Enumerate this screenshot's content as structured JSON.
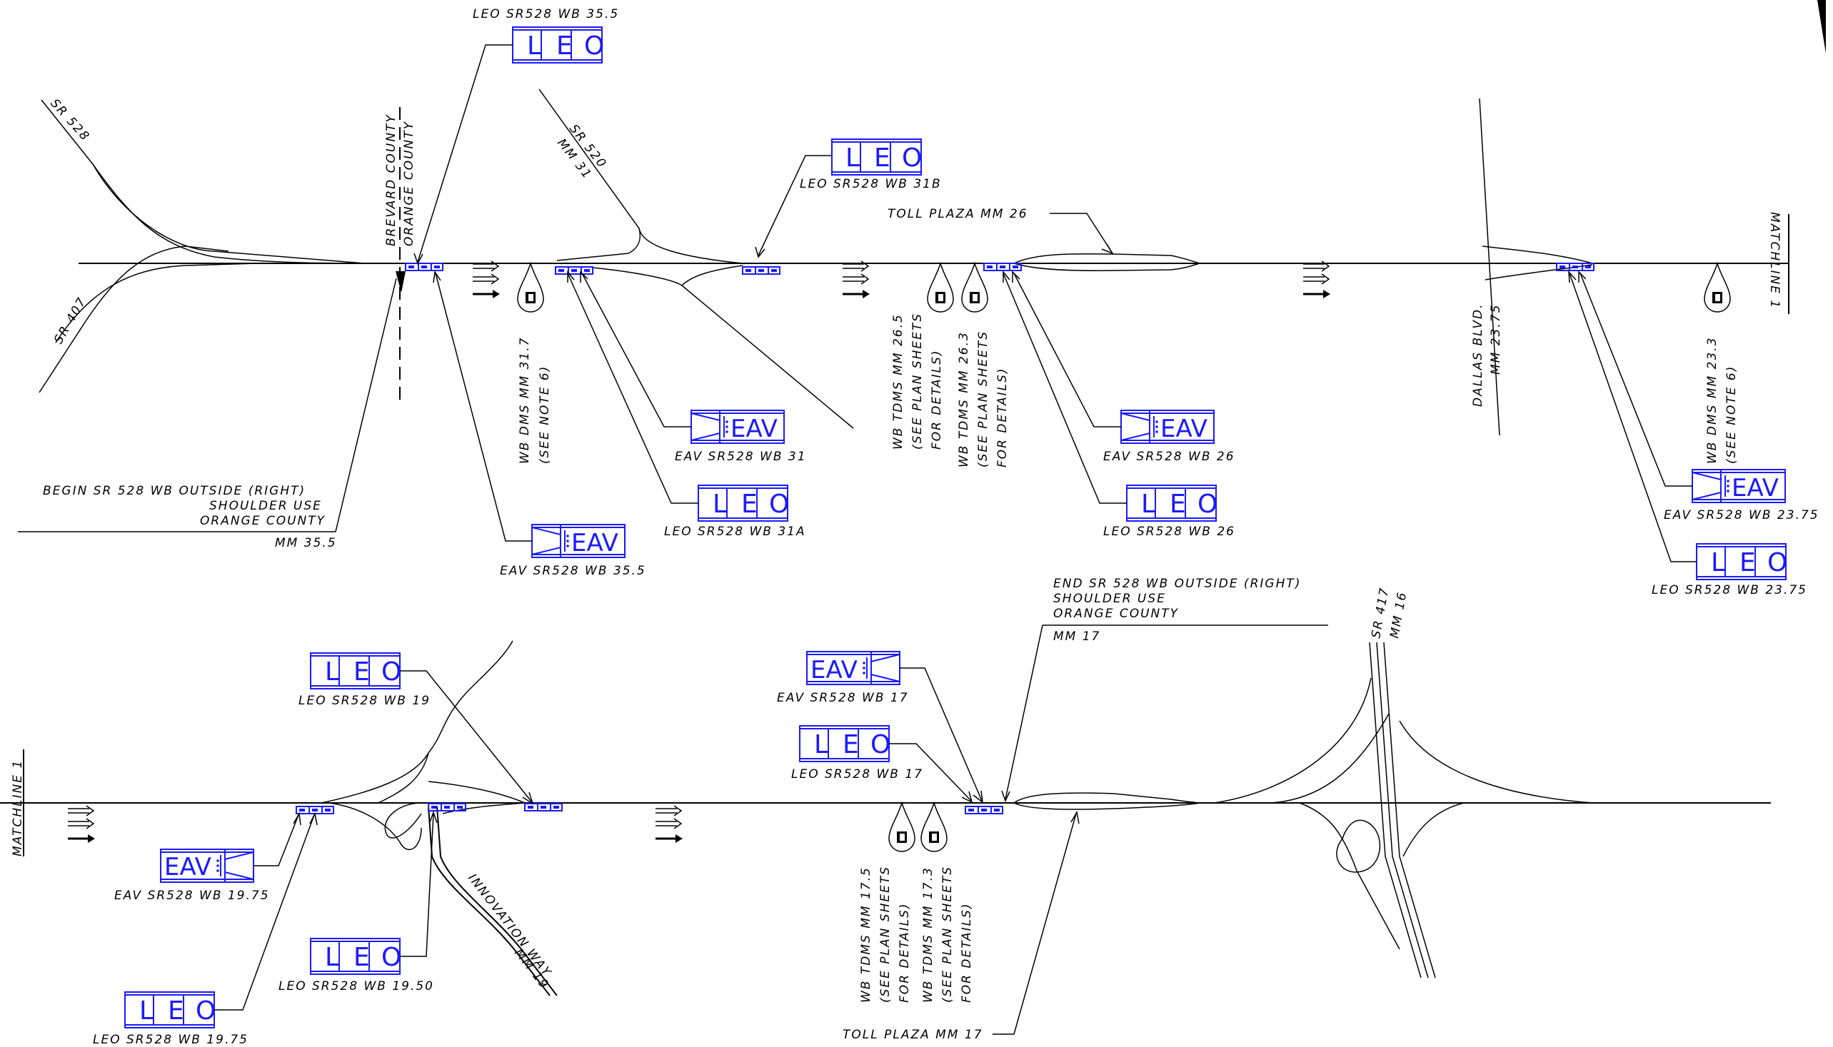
{
  "labels": {
    "leo_355": "LEO  SR528  WB  35.5",
    "sr528": "SR  528",
    "sr407": "SR  407",
    "brevard": "BREVARD  COUNTY",
    "orange": "ORANGE  COUNTY",
    "sr520": "SR  520",
    "mm31": "MM  31",
    "leo_31b": "LEO  SR528  WB  31B",
    "toll26": "TOLL  PLAZA  MM  26",
    "matchline_top": "MATCHLINE  1",
    "dallas": "DALLAS  BLVD.",
    "mm2375": "MM  23.75",
    "dms317a": "WB  DMS  MM  31.7",
    "dms317b": "(SEE  NOTE  6)",
    "eav31": "EAV  SR528  WB  31",
    "leo31a": "LEO  SR528  WB  31A",
    "tdms265a": "WB  TDMS  MM  26.5",
    "tdms265b": "(SEE  PLAN  SHEETS",
    "tdms265c": "FOR  DETAILS)",
    "tdms263a": "WB  TDMS  MM  26.3",
    "tdms263b": "(SEE  PLAN  SHEETS",
    "tdms263c": "FOR  DETAILS)",
    "eav26": "EAV  SR528  WB  26",
    "leo26": "LEO  SR528  WB  26",
    "dms233a": "WB  DMS  MM  23.3",
    "dms233b": "(SEE  NOTE  6)",
    "eav2375": "EAV  SR528  WB  23.75",
    "leo2375": "LEO  SR528  WB  23.75",
    "begin1": "BEGIN  SR  528  WB  OUTSIDE  (RIGHT)",
    "begin2": "SHOULDER  USE",
    "begin3": "ORANGE  COUNTY",
    "begin4": "MM  35.5",
    "eav355": "EAV  SR528  WB  35.5",
    "end1": "END  SR  528  WB  OUTSIDE  (RIGHT)",
    "end2": "SHOULDER  USE",
    "end3": "ORANGE  COUNTY",
    "end4": "MM  17",
    "sr417": "SR  417",
    "mm16": "MM  16",
    "leo19": "LEO  SR528  WB  19",
    "matchline_bot": "MATCHLINE  1",
    "eav1975": "EAV  SR528  WB  19.75",
    "leo1950": "LEO  SR528  WB  19.50",
    "leo1975": "LEO  SR528  WB  19.75",
    "innovation": "INNOVATION  WAY",
    "mm19": "MM  19",
    "eav17": "EAV  SR528  WB  17",
    "leo17": "LEO  SR528  WB  17",
    "tdms175a": "WB  TDMS  MM  17.5",
    "tdms175b": "(SEE  PLAN  SHEETS",
    "tdms175c": "FOR  DETAILS)",
    "tdms173a": "WB  TDMS  MM  17.3",
    "tdms173b": "(SEE  PLAN  SHEETS",
    "tdms173c": "FOR  DETAILS)",
    "toll17": "TOLL  PLAZA  MM  17"
  },
  "sign_text": {
    "L": "L",
    "E": "E",
    "O": "O",
    "eav": "EAV"
  },
  "colors": {
    "sign": "#1a1aff",
    "line": "#000000"
  }
}
